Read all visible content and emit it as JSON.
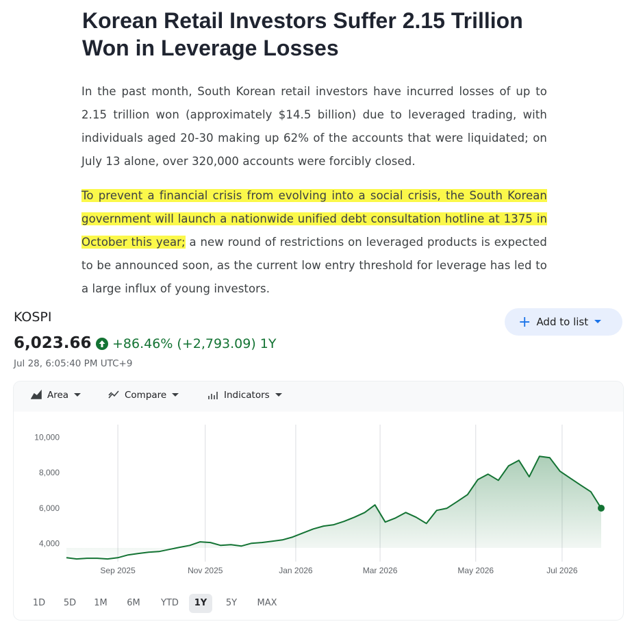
{
  "article": {
    "title": "Korean Retail Investors Suffer 2.15 Trillion Won in Leverage Losses",
    "paragraph_1": "In the past month, South Korean retail investors have incurred losses of up to 2.15 trillion won (approximately $14.5 billion) due to leveraged trading, with individuals aged 20-30 making up 62% of the accounts that were liquidated; on July 13 alone, over 320,000 accounts were forcibly closed.",
    "paragraph_2_highlight": "To prevent a financial crisis from evolving into a social crisis, the South Korean government will launch a nationwide unified debt consultation hotline at 1375 in October this year;",
    "paragraph_2_rest": " a new round of restrictions on leveraged products is expected to be announced soon, as the current low entry threshold for leverage has led to a large influx of young investors."
  },
  "quote": {
    "name": "KOSPI",
    "price": "6,023.66",
    "change": "+86.46% (+2,793.09)",
    "period": "1Y",
    "timestamp": "Jul 28, 6:05:40 PM UTC+9",
    "add_button": "Add to list",
    "toolbar": [
      "Area",
      "Compare",
      "Indicators"
    ],
    "ranges": [
      "1D",
      "5D",
      "1M",
      "6M",
      "YTD",
      "1Y",
      "5Y",
      "MAX"
    ],
    "selected_range": "1Y"
  },
  "chart_data": {
    "type": "area",
    "color": "#137333",
    "values": [
      3220,
      3150,
      3190,
      3190,
      3150,
      3220,
      3380,
      3460,
      3530,
      3570,
      3690,
      3810,
      3920,
      4120,
      4080,
      3920,
      3960,
      3880,
      4040,
      4080,
      4150,
      4230,
      4390,
      4620,
      4850,
      5010,
      5090,
      5280,
      5510,
      5780,
      6210,
      5240,
      5470,
      5780,
      5510,
      5160,
      5900,
      6020,
      6400,
      6790,
      7640,
      7950,
      7600,
      8420,
      8730,
      7800,
      8960,
      8880,
      8110,
      7720,
      7330,
      6950,
      6023.66
    ],
    "xlim": [
      0,
      52
    ],
    "xticks": [
      {
        "value": 5,
        "label": "Sep 2025"
      },
      {
        "value": 13.5,
        "label": "Nov 2025"
      },
      {
        "value": 22.3,
        "label": "Jan 2026"
      },
      {
        "value": 30.5,
        "label": "Mar 2026"
      },
      {
        "value": 39.8,
        "label": "May 2026"
      },
      {
        "value": 48.2,
        "label": "Jul 2026"
      }
    ],
    "ylim": [
      3000,
      10750
    ],
    "yticks": [
      {
        "value": 4000,
        "label": "4,000"
      },
      {
        "value": 6000,
        "label": "6,000"
      },
      {
        "value": 8000,
        "label": "8,000"
      },
      {
        "value": 10000,
        "label": "10,000"
      }
    ],
    "grid": true
  }
}
